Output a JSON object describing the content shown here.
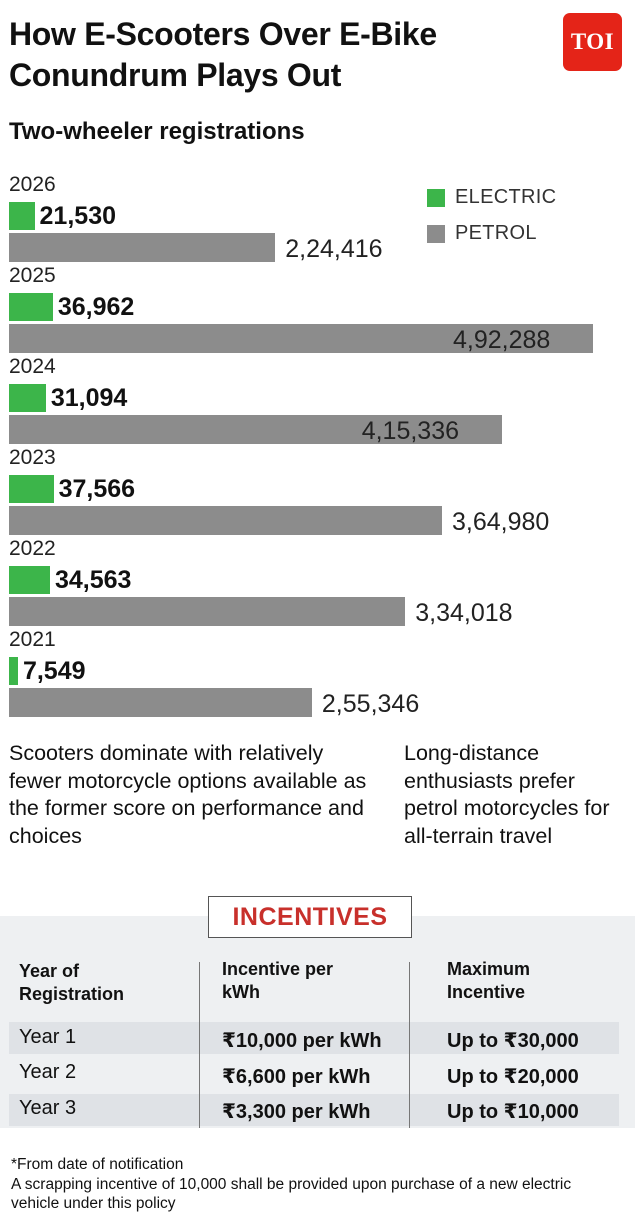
{
  "header": {
    "title": "How E-Scooters Over E-Bike Conundrum Plays Out",
    "logo_text": "TOI"
  },
  "chart_data": {
    "type": "bar",
    "orientation": "horizontal",
    "title": "Two-wheeler registrations",
    "categories": [
      "2026",
      "2025",
      "2024",
      "2023",
      "2022",
      "2021"
    ],
    "series": [
      {
        "name": "ELECTRIC",
        "color": "#3cb54a",
        "values": [
          21530,
          36962,
          31094,
          37566,
          34563,
          7549
        ],
        "labels": [
          "21,530",
          "36,962",
          "31,094",
          "37,566",
          "34,563",
          "7,549"
        ]
      },
      {
        "name": "PETROL",
        "color": "#8c8c8c",
        "values": [
          224416,
          492288,
          415336,
          364980,
          334018,
          255346
        ],
        "labels": [
          "2,24,416",
          "4,92,288",
          "4,15,336",
          "3,64,980",
          "3,34,018",
          "2,55,346"
        ]
      }
    ],
    "legend_position": "top-right",
    "grid": false
  },
  "notes": {
    "left": "Scooters dominate with relatively fewer motorcycle options available as the former score on performance and choices",
    "right": "Long-distance enthusiasts prefer petrol motorcycles for all-terrain travel"
  },
  "incentives": {
    "title": "INCENTIVES",
    "headers": [
      "Year of Registration",
      "Incentive per kWh",
      "Maximum Incentive"
    ],
    "rows": [
      [
        "Year 1",
        "₹10,000 per kWh",
        "Up to ₹30,000"
      ],
      [
        "Year 2",
        "₹6,600 per kWh",
        "Up to ₹20,000"
      ],
      [
        "Year 3",
        "₹3,300 per kWh",
        "Up to ₹10,000"
      ]
    ]
  },
  "footer": {
    "line1": "*From date of notification",
    "line2": "A scrapping incentive of 10,000 shall be provided upon purchase of a new electric vehicle under this policy"
  }
}
